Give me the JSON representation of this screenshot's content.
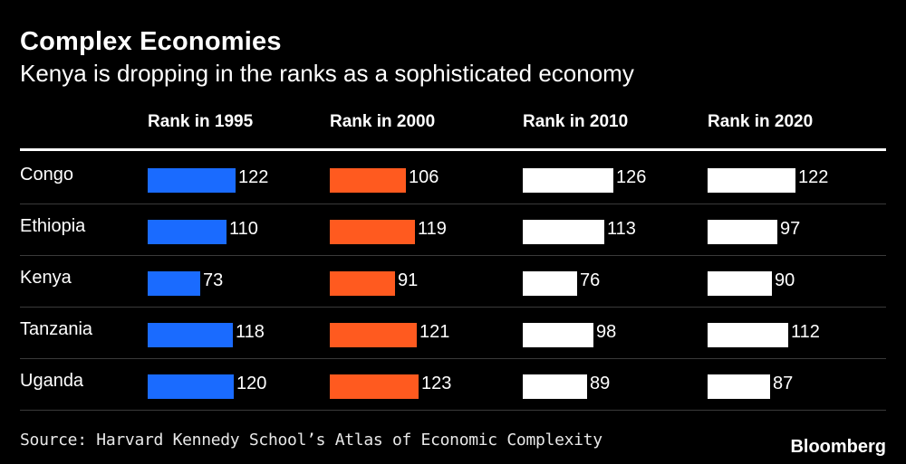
{
  "chart_data": {
    "type": "table",
    "title": "Complex Economies",
    "subtitle": "Kenya is dropping in the ranks as a sophisticated economy",
    "columns": [
      {
        "label": "Rank in 1995",
        "color": "#1a6bff"
      },
      {
        "label": "Rank in 2000",
        "color": "#ff5a1f"
      },
      {
        "label": "Rank in 2010",
        "color": "#ffffff"
      },
      {
        "label": "Rank in 2020",
        "color": "#ffffff"
      }
    ],
    "rows": [
      {
        "country": "Congo",
        "values": [
          122,
          106,
          126,
          122
        ]
      },
      {
        "country": "Ethiopia",
        "values": [
          110,
          119,
          113,
          97
        ]
      },
      {
        "country": "Kenya",
        "values": [
          73,
          91,
          76,
          90
        ]
      },
      {
        "country": "Tanzania",
        "values": [
          118,
          121,
          98,
          112
        ]
      },
      {
        "country": "Uganda",
        "values": [
          120,
          123,
          89,
          87
        ]
      }
    ],
    "max_value": 126
  },
  "footer": {
    "source": "Source: Harvard Kennedy School’s Atlas of Economic Complexity",
    "brand": "Bloomberg"
  }
}
